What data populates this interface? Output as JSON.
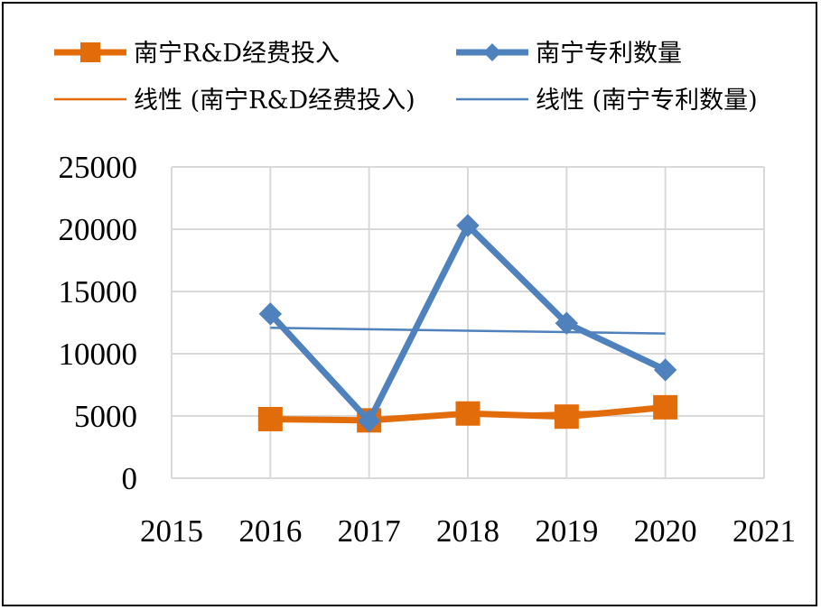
{
  "chart_data": {
    "type": "line",
    "x": [
      2016,
      2017,
      2018,
      2019,
      2020
    ],
    "xlim": [
      2015,
      2021
    ],
    "ylim": [
      0,
      25000
    ],
    "x_ticks": [
      "2015",
      "2016",
      "2017",
      "2018",
      "2019",
      "2020",
      "2021"
    ],
    "y_ticks": [
      "0",
      "5000",
      "10000",
      "15000",
      "20000",
      "25000"
    ],
    "grid": true,
    "legend_position": "top",
    "series": [
      {
        "name": "南宁R&D经费投入",
        "values": [
          4750,
          4650,
          5200,
          4950,
          5700
        ],
        "color": "#E36C0A",
        "marker": "square"
      },
      {
        "name": "南宁专利数量",
        "values": [
          13200,
          4600,
          20300,
          12450,
          8700
        ],
        "color": "#4F81BD",
        "marker": "diamond"
      }
    ],
    "trendlines": [
      {
        "name": "线性 (南宁R&D经费投入)",
        "color": "#E36C0A"
      },
      {
        "name": "线性 (南宁专利数量)",
        "color": "#4F81BD"
      }
    ]
  }
}
